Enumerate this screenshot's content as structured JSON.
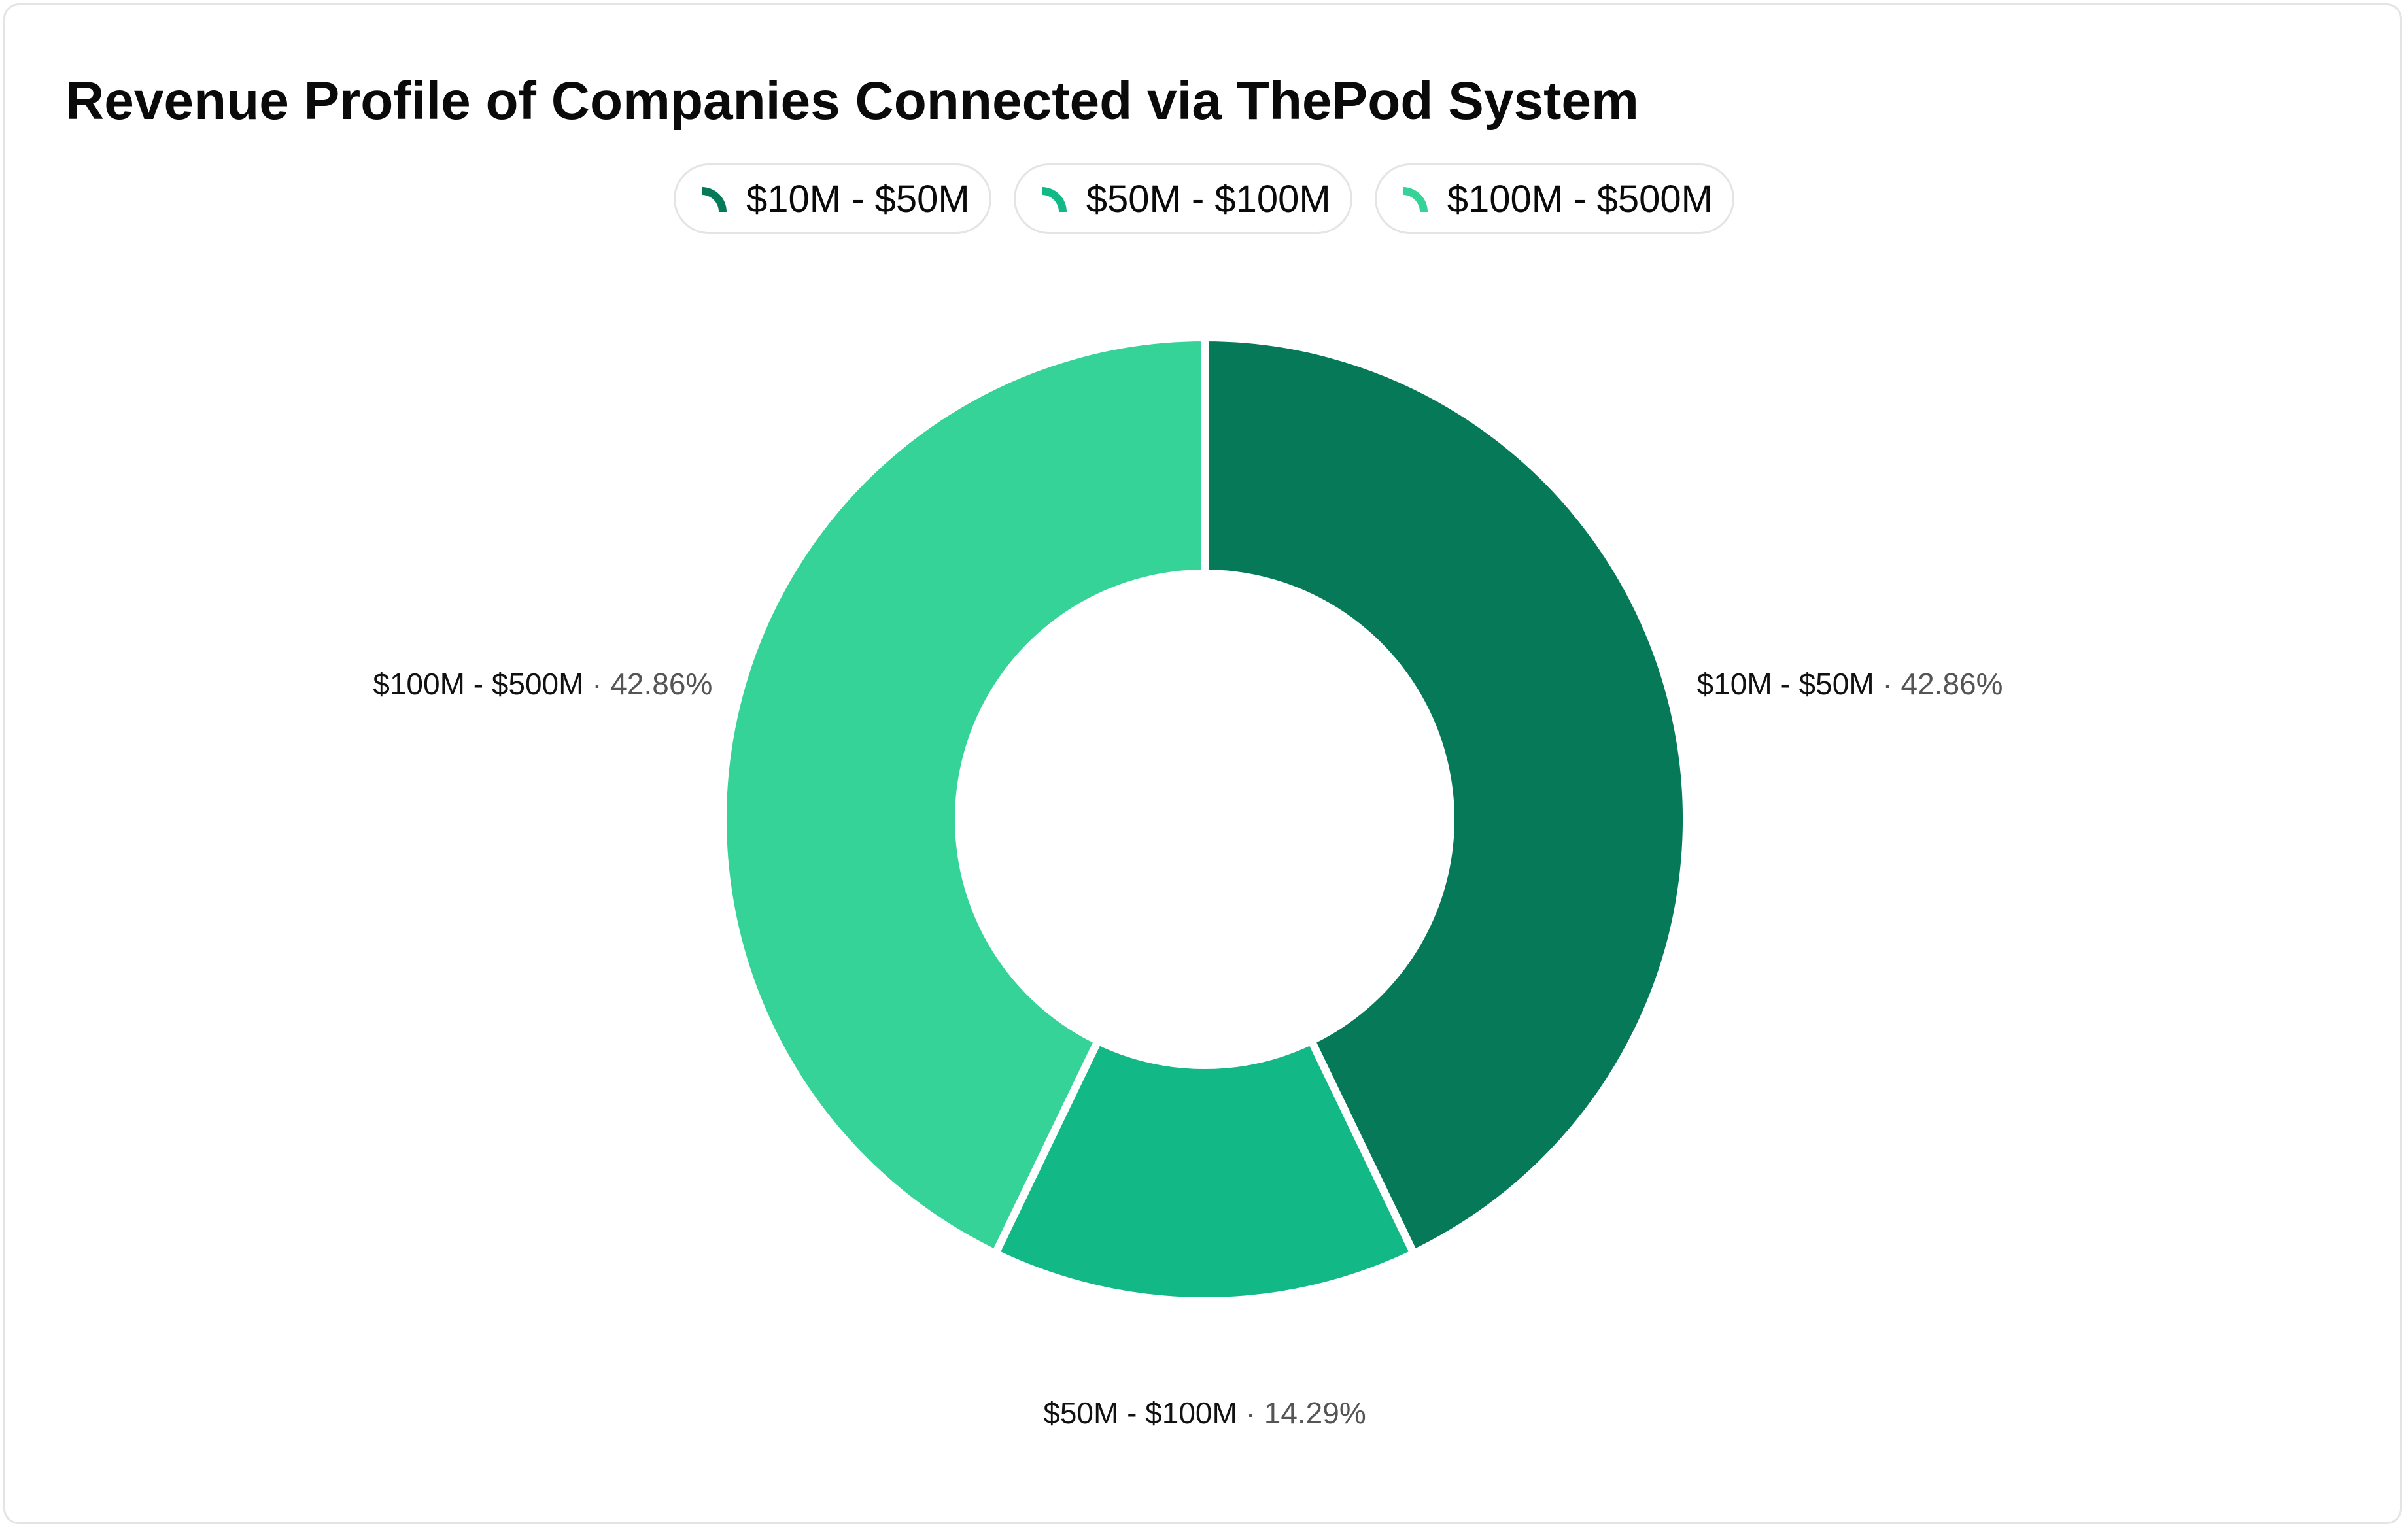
{
  "chart_data": {
    "type": "pie",
    "variant": "donut",
    "title": "Revenue Profile of Companies Connected via ThePod System",
    "legend_position": "top-center",
    "categories": [
      "$10M - $50M",
      "$50M - $100M",
      "$100M - $500M"
    ],
    "values": [
      42.86,
      14.29,
      42.86
    ],
    "value_labels": [
      "42.86%",
      "14.29%",
      "42.86%"
    ],
    "colors": [
      "#067a58",
      "#12b886",
      "#36d399"
    ],
    "separator": "·"
  }
}
